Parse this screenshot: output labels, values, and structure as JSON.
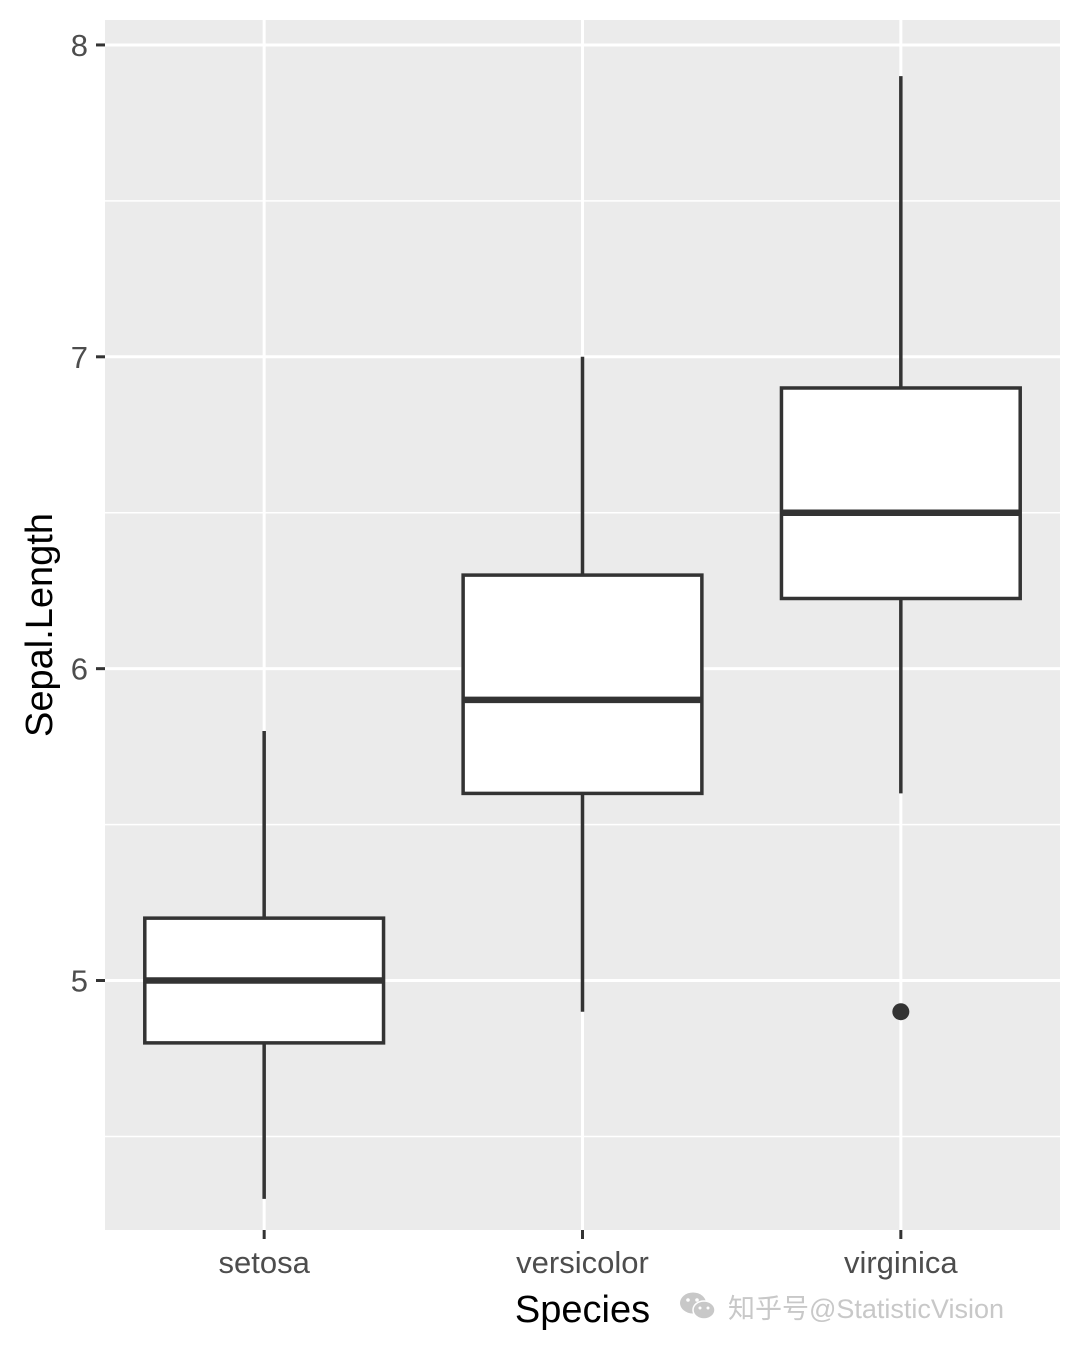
{
  "chart_data": {
    "type": "boxplot",
    "xlabel": "Species",
    "ylabel": "Sepal.Length",
    "ylim": [
      4.2,
      8.08
    ],
    "yticks": [
      5,
      6,
      7,
      8
    ],
    "yticks_minor": [
      4.5,
      5.5,
      6.5,
      7.5
    ],
    "categories": [
      "setosa",
      "versicolor",
      "virginica"
    ],
    "boxes": [
      {
        "category": "setosa",
        "lower_whisker": 4.3,
        "q1": 4.8,
        "median": 5.0,
        "q3": 5.2,
        "upper_whisker": 5.8,
        "outliers": []
      },
      {
        "category": "versicolor",
        "lower_whisker": 4.9,
        "q1": 5.6,
        "median": 5.9,
        "q3": 6.3,
        "upper_whisker": 7.0,
        "outliers": []
      },
      {
        "category": "virginica",
        "lower_whisker": 5.6,
        "q1": 6.225,
        "median": 6.5,
        "q3": 6.9,
        "upper_whisker": 7.9,
        "outliers": [
          4.9
        ]
      }
    ],
    "grid": true,
    "legend": "none",
    "colors": {
      "panel_background": "#ebebeb",
      "grid": "#ffffff",
      "box_fill": "#ffffff",
      "box_line": "#333333",
      "tick_label": "#4d4d4d"
    }
  },
  "watermark": {
    "icon": "wechat-icon",
    "text": "知乎号@StatisticVision"
  }
}
